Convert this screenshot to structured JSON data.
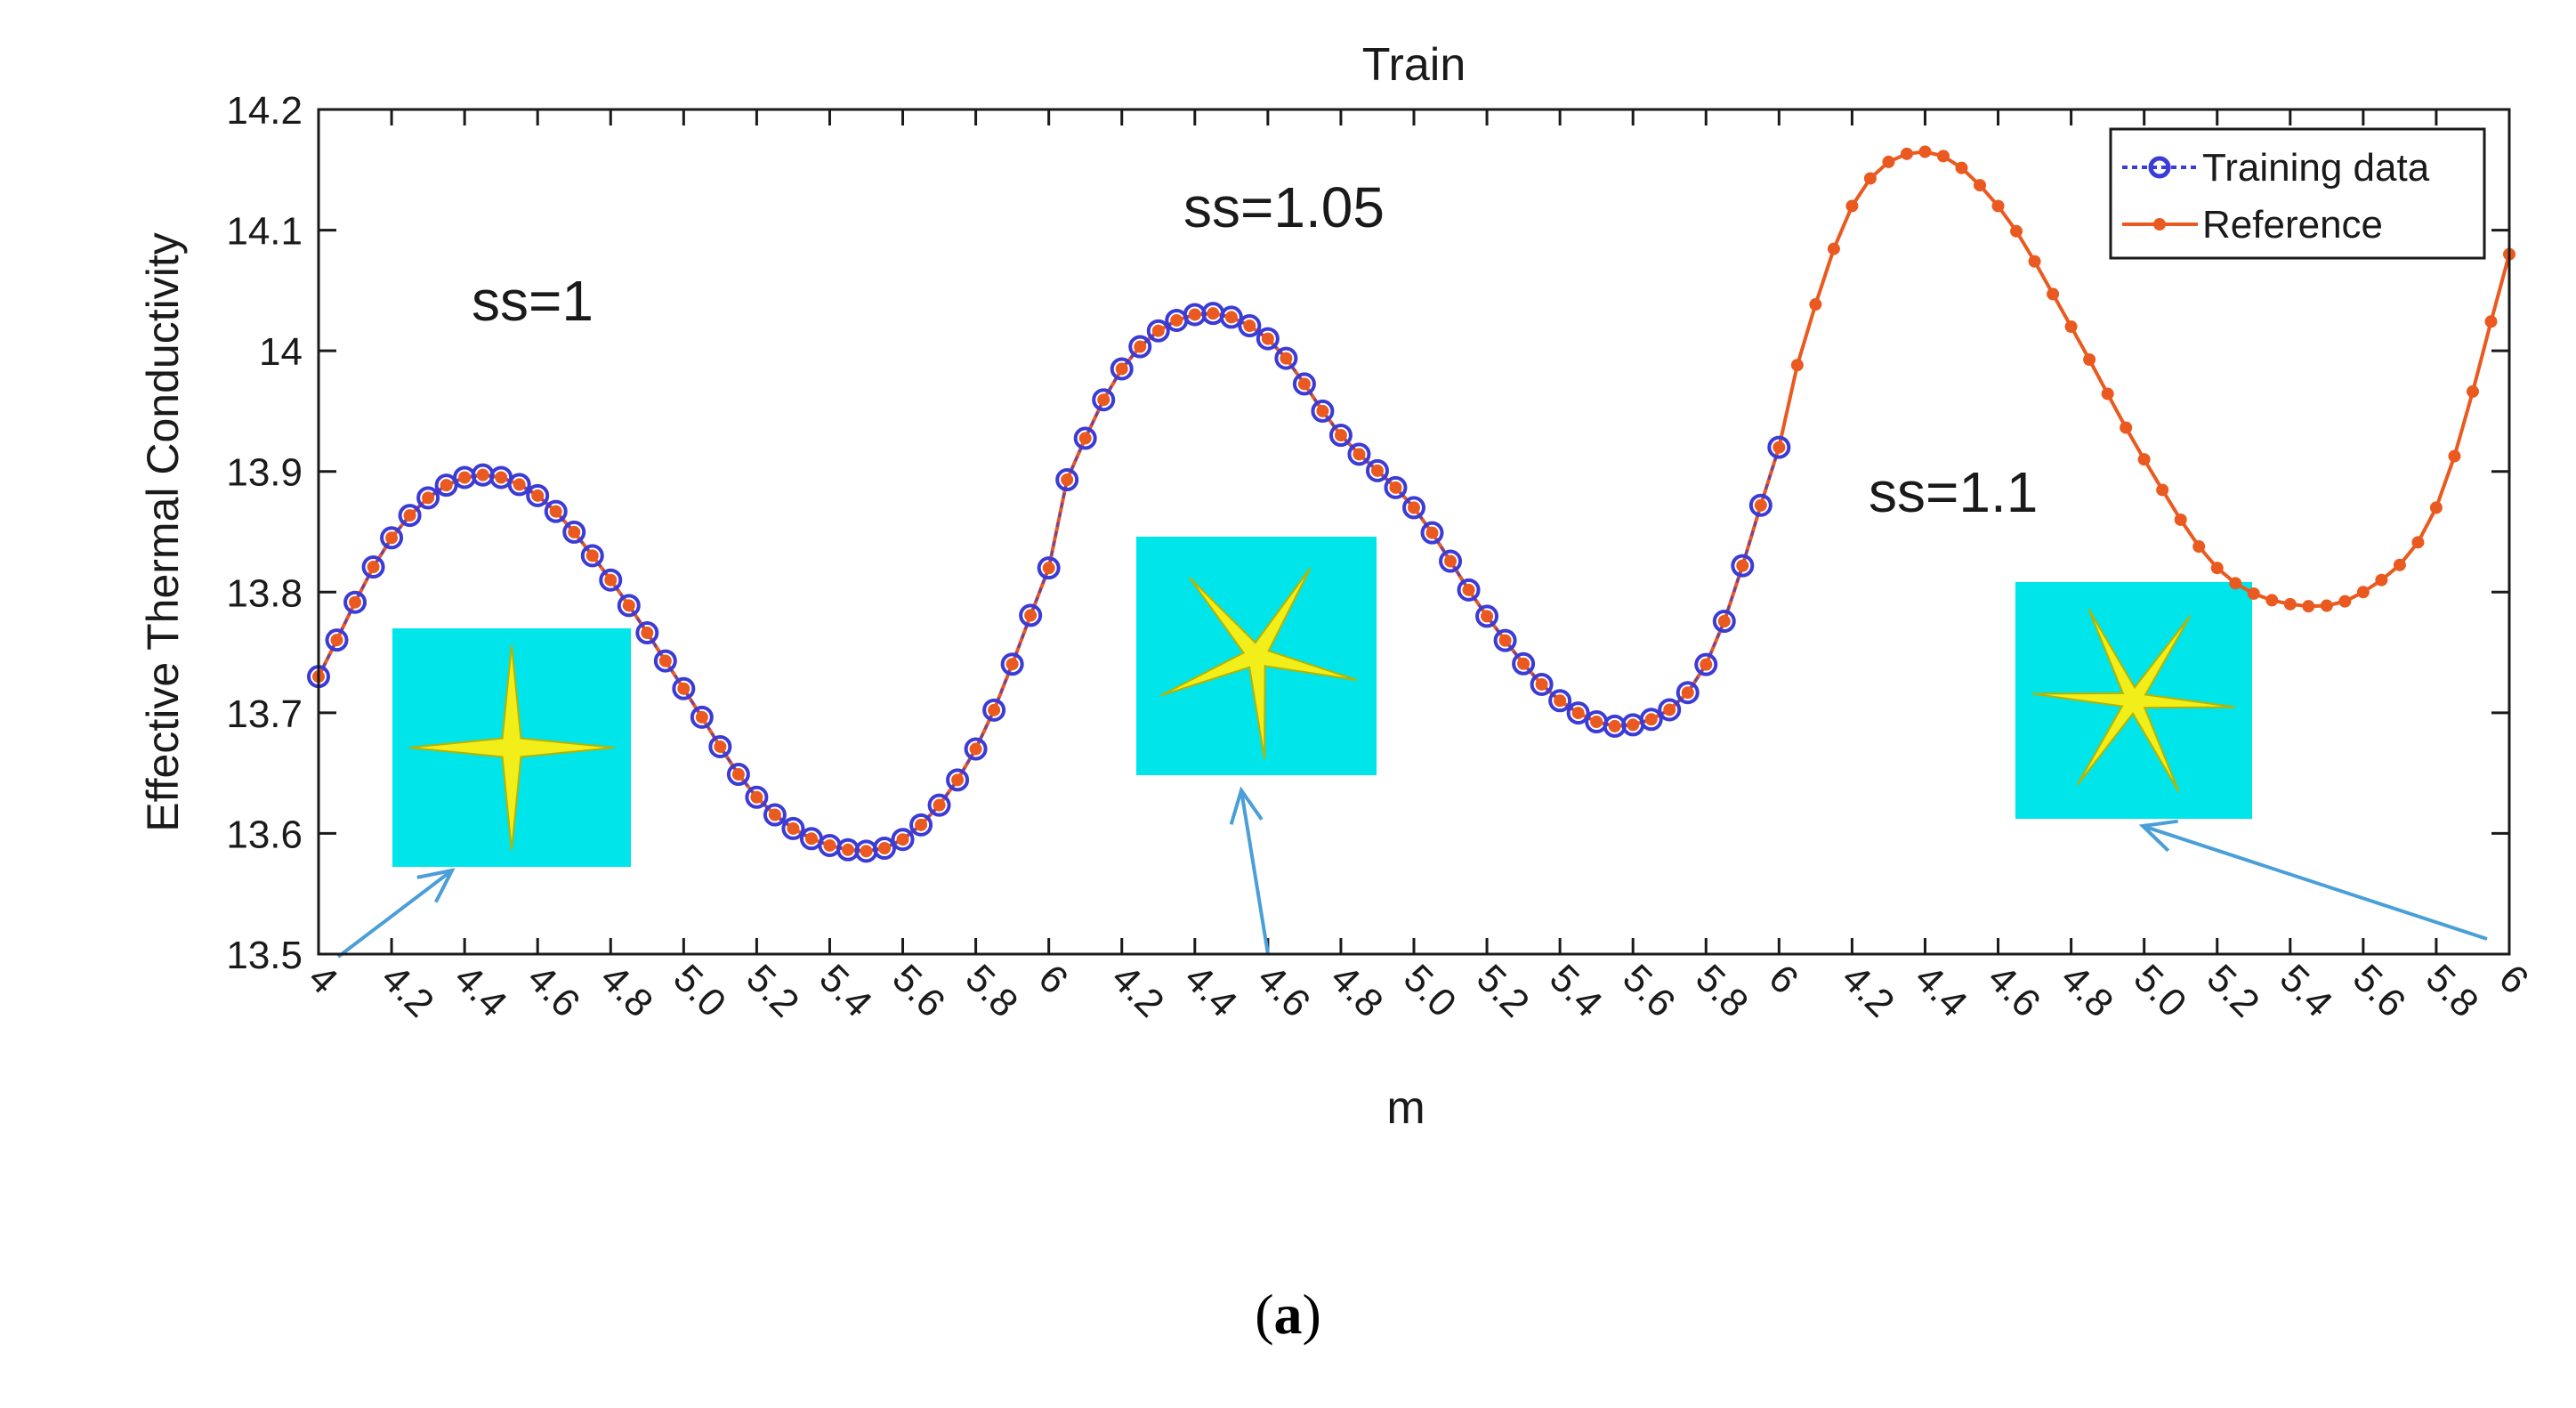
{
  "chart_data": {
    "type": "line",
    "title": "Train",
    "xlabel": "m",
    "ylabel": "Effective Thermal Conductivity",
    "ylim": [
      13.5,
      14.2
    ],
    "yticks": [
      "13.5",
      "13.6",
      "13.7",
      "13.8",
      "13.9",
      "14",
      "14.1",
      "14.2"
    ],
    "xtick_labels": [
      "4",
      "4.2",
      "4.4",
      "4.6",
      "4.8",
      "5.0",
      "5.2",
      "5.4",
      "5.6",
      "5.8",
      "6",
      "4.2",
      "4.4",
      "4.6",
      "4.8",
      "5.0",
      "5.2",
      "5.4",
      "5.6",
      "5.8",
      "6",
      "4.2",
      "4.4",
      "4.6",
      "4.8",
      "5.0",
      "5.2",
      "5.4",
      "5.6",
      "5.8",
      "6"
    ],
    "segments": [
      {
        "label": "ss=1",
        "m": [
          4.0,
          4.2,
          4.4,
          4.6,
          4.8,
          5.0,
          5.2,
          5.4,
          5.6,
          5.8,
          6.0
        ],
        "values": [
          13.73,
          13.845,
          13.895,
          13.88,
          13.81,
          13.72,
          13.63,
          13.59,
          13.595,
          13.67,
          13.82
        ]
      },
      {
        "label": "ss=1.05",
        "m": [
          6.0,
          6.2,
          6.4,
          6.6,
          6.8,
          7.0,
          7.2,
          7.4,
          7.6,
          7.8,
          8.0
        ],
        "values": [
          13.86,
          13.985,
          14.03,
          14.01,
          13.93,
          13.87,
          13.78,
          13.71,
          13.69,
          13.74,
          13.92
        ]
      },
      {
        "label": "ss=1.1",
        "m": [
          8.0,
          8.2,
          8.4,
          8.6,
          8.8,
          9.0,
          9.2,
          9.4,
          9.6,
          9.8,
          10.0
        ],
        "values": [
          13.94,
          14.12,
          14.165,
          14.12,
          14.02,
          13.91,
          13.82,
          13.79,
          13.8,
          13.87,
          14.08
        ]
      }
    ],
    "series": [
      {
        "name": "Training data",
        "color": "#3b3bd6",
        "x_range": [
          4.0,
          8.0
        ],
        "marker": "circle",
        "style": "dotted"
      },
      {
        "name": "Reference",
        "color": "#ea5a20",
        "x_range": [
          4.0,
          10.0
        ],
        "marker": "dot",
        "style": "solid"
      }
    ],
    "legend": "top-right",
    "annotations": [
      {
        "text": "ss=1",
        "icon": "four-point-star"
      },
      {
        "text": "ss=1.05",
        "icon": "five-point-star"
      },
      {
        "text": "ss=1.1",
        "icon": "six-point-star"
      }
    ],
    "colors": {
      "inset_bg": "#00e5ea",
      "star": "#f2ee1a",
      "arrow": "#4a9fd8"
    }
  },
  "caption": {
    "open": "(",
    "letter": "a",
    "close": ")"
  }
}
